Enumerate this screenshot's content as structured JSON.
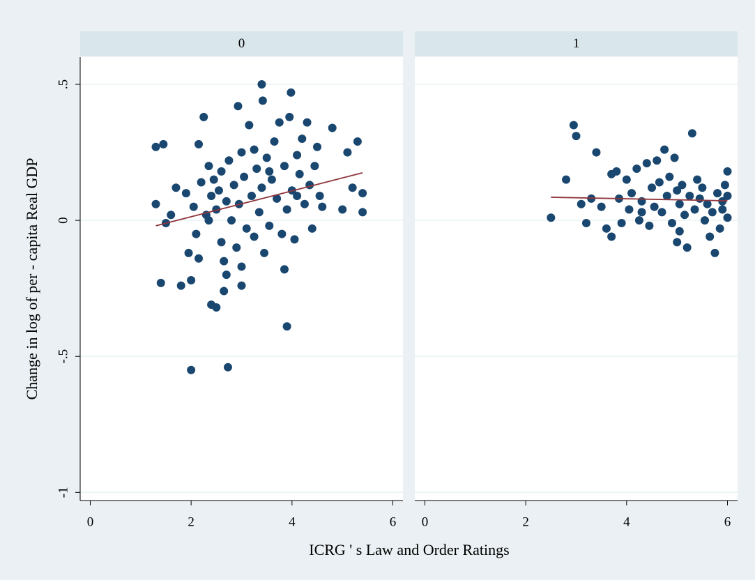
{
  "chart_data": {
    "type": "scatter",
    "ylabel": "Change in log of per - capita Real GDP",
    "xlabel": "ICRG ' s Law and Order Ratings",
    "xlim": [
      -0.2,
      6.2
    ],
    "xticks": [
      0,
      2,
      4,
      6
    ],
    "ylim": [
      -1.03,
      0.6
    ],
    "yticks": [
      {
        "value": -1,
        "label": "-1"
      },
      {
        "value": -0.5,
        "label": "-.5"
      },
      0,
      {
        "value": 0.5,
        "label": ".5"
      }
    ],
    "grid": true,
    "color": "#1a476f",
    "fit_color": "#90353b",
    "panels": [
      {
        "title": "0",
        "x": [
          1.3,
          1.45,
          1.4,
          1.3,
          1.5,
          1.6,
          1.7,
          1.8,
          1.9,
          2.0,
          2.0,
          2.05,
          2.1,
          2.15,
          2.2,
          2.25,
          2.3,
          2.35,
          2.4,
          2.4,
          2.45,
          2.5,
          2.5,
          2.55,
          2.6,
          2.6,
          2.65,
          2.7,
          2.7,
          2.73,
          2.75,
          2.8,
          2.85,
          2.9,
          2.93,
          2.95,
          3.0,
          3.0,
          3.05,
          3.1,
          3.15,
          3.2,
          3.25,
          3.3,
          3.35,
          3.4,
          3.4,
          3.42,
          3.45,
          3.5,
          3.55,
          3.6,
          3.65,
          3.7,
          3.75,
          3.8,
          3.85,
          3.9,
          3.9,
          3.95,
          3.98,
          4.0,
          4.05,
          4.1,
          4.15,
          4.2,
          4.25,
          4.3,
          4.35,
          4.4,
          4.45,
          4.5,
          4.55,
          4.6,
          4.8,
          5.0,
          5.1,
          5.2,
          5.3,
          5.4,
          5.4,
          3.85,
          2.15,
          1.95,
          2.35,
          2.65,
          3.25,
          3.55,
          4.1,
          3.0
        ],
        "values": [
          0.27,
          0.28,
          -0.23,
          0.06,
          -0.01,
          0.02,
          0.12,
          -0.24,
          0.1,
          -0.55,
          -0.22,
          0.05,
          -0.05,
          0.28,
          0.14,
          0.38,
          0.02,
          0.2,
          -0.31,
          0.09,
          0.15,
          -0.32,
          0.04,
          0.11,
          -0.08,
          0.18,
          -0.26,
          0.07,
          -0.2,
          -0.54,
          0.22,
          0.0,
          0.13,
          -0.1,
          0.42,
          0.06,
          -0.24,
          0.25,
          0.16,
          -0.03,
          0.35,
          0.09,
          -0.06,
          0.19,
          0.03,
          0.5,
          0.12,
          0.44,
          -0.12,
          0.23,
          -0.02,
          0.15,
          0.29,
          0.08,
          0.36,
          -0.05,
          0.2,
          -0.39,
          0.04,
          0.38,
          0.47,
          0.11,
          -0.07,
          0.24,
          0.17,
          0.3,
          0.06,
          0.36,
          0.13,
          -0.03,
          0.2,
          0.27,
          0.09,
          0.05,
          0.34,
          0.04,
          0.25,
          0.12,
          0.29,
          0.1,
          0.03,
          -0.18,
          -0.14,
          -0.12,
          0.0,
          -0.15,
          0.26,
          0.18,
          0.09,
          -0.17
        ],
        "fit": {
          "x": [
            1.3,
            5.4
          ],
          "values": [
            -0.02,
            0.175
          ]
        }
      },
      {
        "title": "1",
        "x": [
          2.5,
          2.8,
          2.95,
          3.0,
          3.1,
          3.2,
          3.4,
          3.5,
          3.6,
          3.7,
          3.7,
          3.8,
          3.85,
          3.9,
          4.0,
          4.05,
          4.1,
          4.2,
          4.25,
          4.3,
          4.4,
          4.45,
          4.5,
          4.55,
          4.6,
          4.65,
          4.7,
          4.75,
          4.8,
          4.85,
          4.9,
          4.95,
          5.0,
          5.0,
          5.05,
          5.1,
          5.15,
          5.2,
          5.25,
          5.3,
          5.35,
          5.4,
          5.45,
          5.5,
          5.55,
          5.6,
          5.7,
          5.75,
          5.8,
          5.85,
          5.9,
          5.95,
          6.0,
          6.0,
          6.0,
          5.9,
          5.65,
          4.3,
          3.3,
          5.05
        ],
        "values": [
          0.01,
          0.15,
          0.35,
          0.31,
          0.06,
          -0.01,
          0.25,
          0.05,
          -0.03,
          0.17,
          -0.06,
          0.18,
          0.08,
          -0.01,
          0.15,
          0.04,
          0.1,
          0.19,
          0.0,
          0.07,
          0.21,
          -0.02,
          0.12,
          0.05,
          0.22,
          0.14,
          0.03,
          0.26,
          0.09,
          0.16,
          -0.01,
          0.23,
          -0.08,
          0.11,
          0.06,
          0.13,
          0.02,
          -0.1,
          0.09,
          0.32,
          0.04,
          0.15,
          0.08,
          0.12,
          0.0,
          0.06,
          0.03,
          -0.12,
          0.1,
          -0.03,
          0.07,
          0.13,
          0.18,
          0.01,
          0.09,
          0.04,
          -0.06,
          0.03,
          0.08,
          -0.04
        ],
        "fit": {
          "x": [
            2.5,
            6.0
          ],
          "values": [
            0.085,
            0.072
          ]
        }
      }
    ]
  }
}
